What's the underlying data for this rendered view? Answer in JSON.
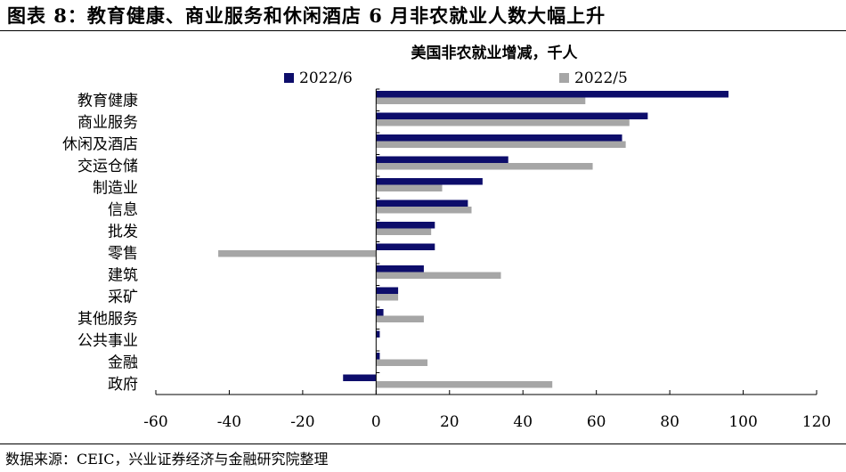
{
  "figure": {
    "title": "图表 8：教育健康、商业服务和休闲酒店 6 月非农就业人数大幅上升",
    "source": "数据来源：CEIC，兴业证券经济与金融研究院整理"
  },
  "colors": {
    "series_2022_6": "#0d0d6b",
    "series_2022_5": "#a6a6a6",
    "axis": "#000000"
  },
  "chart_data": {
    "type": "bar",
    "orientation": "horizontal",
    "title": "美国非农就业增减，千人",
    "categories": [
      "教育健康",
      "商业服务",
      "休闲及酒店",
      "交运仓储",
      "制造业",
      "信息",
      "批发",
      "零售",
      "建筑",
      "采矿",
      "其他服务",
      "公共事业",
      "金融",
      "政府"
    ],
    "series": [
      {
        "name": "2022/6",
        "values": [
          96,
          74,
          67,
          36,
          29,
          25,
          16,
          16,
          13,
          6,
          2,
          1,
          1,
          -9
        ]
      },
      {
        "name": "2022/5",
        "values": [
          57,
          69,
          68,
          59,
          18,
          26,
          15,
          -43,
          34,
          6,
          13,
          0,
          14,
          48
        ]
      }
    ],
    "xlim": [
      -60,
      120
    ],
    "xticks": [
      "-60",
      "-40",
      "-20",
      "0",
      "20",
      "40",
      "60",
      "80",
      "100",
      "120"
    ],
    "xlabel": "",
    "ylabel": "",
    "legend": "top",
    "grid": false
  }
}
